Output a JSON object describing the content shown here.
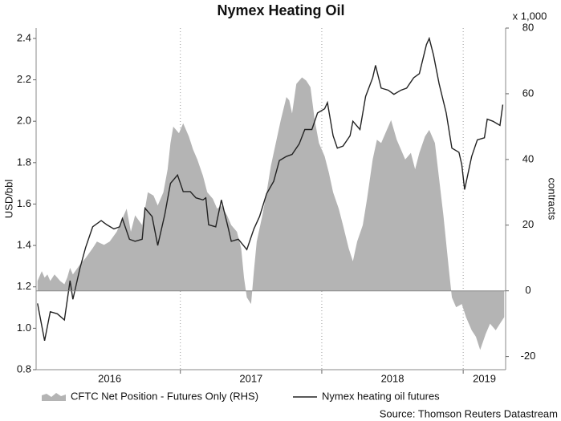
{
  "chart_data": {
    "type": "area-line",
    "title": "Nymex Heating Oil",
    "ylabel": "USD/bbl",
    "y2label": "contracts",
    "y2multiplier": "x 1,000",
    "source": "Source: Thomson Reuters Datastream",
    "xlim": [
      2015.98,
      2019.3
    ],
    "xticks": [
      {
        "value": 2016.5,
        "label": "2016"
      },
      {
        "value": 2017.5,
        "label": "2017"
      },
      {
        "value": 2018.5,
        "label": "2018"
      },
      {
        "value": 2019.15,
        "label": "2019"
      }
    ],
    "xgrid": [
      2017,
      2018,
      2019
    ],
    "ylim": [
      0.8,
      2.45
    ],
    "yticks": [
      0.8,
      {
        "value": 1.0,
        "label": "1.0"
      },
      1.2,
      1.4,
      1.6,
      1.8,
      {
        "value": 2.0,
        "label": "2.0"
      },
      2.2,
      2.4
    ],
    "y2lim": [
      -24,
      80
    ],
    "y2ticks": [
      -20,
      0,
      20,
      40,
      60,
      80
    ],
    "series": [
      {
        "name": "CFTC Net Position - Futures Only (RHS)",
        "kind": "area",
        "axis": "y2",
        "color": "#b4b4b4",
        "x": [
          2015.99,
          2016.02,
          2016.04,
          2016.06,
          2016.08,
          2016.11,
          2016.13,
          2016.15,
          2016.18,
          2016.2,
          2016.22,
          2016.24,
          2016.29,
          2016.33,
          2016.38,
          2016.41,
          2016.46,
          2016.5,
          2016.55,
          2016.58,
          2016.62,
          2016.65,
          2016.68,
          2016.73,
          2016.77,
          2016.81,
          2016.84,
          2016.88,
          2016.91,
          2016.93,
          2016.95,
          2016.99,
          2017.02,
          2017.06,
          2017.09,
          2017.12,
          2017.16,
          2017.19,
          2017.23,
          2017.26,
          2017.29,
          2017.33,
          2017.36,
          2017.4,
          2017.43,
          2017.45,
          2017.47,
          2017.5,
          2017.52,
          2017.54,
          2017.58,
          2017.61,
          2017.64,
          2017.68,
          2017.71,
          2017.75,
          2017.77,
          2017.79,
          2017.82,
          2017.86,
          2017.89,
          2017.92,
          2017.95,
          2017.98,
          2018.02,
          2018.05,
          2018.08,
          2018.12,
          2018.15,
          2018.19,
          2018.22,
          2018.25,
          2018.29,
          2018.32,
          2018.36,
          2018.39,
          2018.42,
          2018.46,
          2018.49,
          2018.53,
          2018.56,
          2018.59,
          2018.63,
          2018.66,
          2018.69,
          2018.73,
          2018.76,
          2018.8,
          2018.83,
          2018.86,
          2018.9,
          2018.92,
          2018.95,
          2018.99,
          2019.02,
          2019.06,
          2019.09,
          2019.12,
          2019.16,
          2019.19,
          2019.23,
          2019.26,
          2019.29
        ],
        "values": [
          3,
          6,
          4,
          5,
          3,
          5,
          4,
          3,
          2,
          4,
          7,
          5,
          8,
          10,
          13,
          15,
          14,
          15,
          18,
          21,
          25,
          18,
          23,
          20,
          30,
          29,
          26,
          30,
          37,
          45,
          50,
          48,
          51,
          47,
          43,
          40,
          35,
          30,
          28,
          25,
          26,
          23,
          20,
          18,
          13,
          4,
          -2,
          -4,
          6,
          15,
          23,
          30,
          38,
          46,
          52,
          59,
          58,
          54,
          63,
          65,
          64,
          62,
          52,
          45,
          41,
          36,
          30,
          25,
          20,
          13,
          9,
          15,
          20,
          28,
          40,
          46,
          45,
          49,
          52,
          46,
          43,
          40,
          42,
          37,
          42,
          47,
          49,
          45,
          34,
          23,
          6,
          -2,
          -5,
          -4,
          -8,
          -12,
          -14,
          -18,
          -13,
          -10,
          -12,
          -10,
          -8
        ]
      },
      {
        "name": "Nymex heating oil futures",
        "kind": "line",
        "axis": "y",
        "color": "#222222",
        "x": [
          2015.99,
          2016.04,
          2016.08,
          2016.13,
          2016.18,
          2016.22,
          2016.24,
          2016.29,
          2016.33,
          2016.38,
          2016.44,
          2016.48,
          2016.53,
          2016.57,
          2016.59,
          2016.64,
          2016.68,
          2016.73,
          2016.75,
          2016.8,
          2016.84,
          2016.89,
          2016.93,
          2016.98,
          2017.02,
          2017.07,
          2017.11,
          2017.16,
          2017.18,
          2017.2,
          2017.25,
          2017.29,
          2017.34,
          2017.36,
          2017.41,
          2017.47,
          2017.52,
          2017.56,
          2017.61,
          2017.66,
          2017.7,
          2017.75,
          2017.79,
          2017.84,
          2017.88,
          2017.93,
          2017.97,
          2018.02,
          2018.04,
          2018.08,
          2018.11,
          2018.15,
          2018.2,
          2018.22,
          2018.27,
          2018.31,
          2018.36,
          2018.38,
          2018.42,
          2018.47,
          2018.51,
          2018.56,
          2018.6,
          2018.65,
          2018.69,
          2018.74,
          2018.76,
          2018.79,
          2018.83,
          2018.88,
          2018.92,
          2018.97,
          2018.99,
          2019.01,
          2019.06,
          2019.1,
          2019.15,
          2019.17,
          2019.21,
          2019.26,
          2019.28
        ],
        "values": [
          1.12,
          0.94,
          1.08,
          1.07,
          1.04,
          1.23,
          1.14,
          1.29,
          1.39,
          1.49,
          1.52,
          1.5,
          1.48,
          1.49,
          1.53,
          1.43,
          1.42,
          1.43,
          1.58,
          1.54,
          1.4,
          1.55,
          1.7,
          1.74,
          1.66,
          1.66,
          1.63,
          1.62,
          1.63,
          1.5,
          1.49,
          1.62,
          1.48,
          1.42,
          1.43,
          1.38,
          1.48,
          1.54,
          1.65,
          1.71,
          1.81,
          1.83,
          1.84,
          1.89,
          1.96,
          1.96,
          2.04,
          2.06,
          2.09,
          1.93,
          1.87,
          1.88,
          1.93,
          2.0,
          1.96,
          2.12,
          2.21,
          2.27,
          2.16,
          2.15,
          2.13,
          2.15,
          2.16,
          2.21,
          2.23,
          2.37,
          2.4,
          2.32,
          2.18,
          2.04,
          1.87,
          1.85,
          1.79,
          1.67,
          1.83,
          1.91,
          1.92,
          2.01,
          2.0,
          1.98,
          2.08
        ]
      }
    ]
  }
}
